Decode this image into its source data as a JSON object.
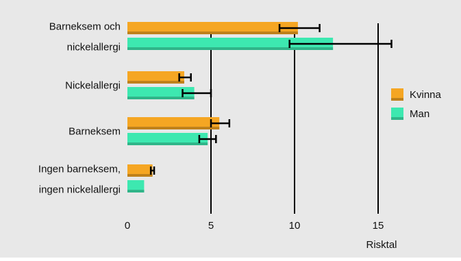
{
  "chart_data": {
    "type": "bar",
    "orientation": "horizontal",
    "categories": [
      {
        "lines": [
          "Barneksem och",
          "nickelallergi"
        ]
      },
      {
        "lines": [
          "Nickelallergi"
        ]
      },
      {
        "lines": [
          "Barneksem"
        ]
      },
      {
        "lines": [
          "Ingen barneksem,",
          "ingen nickelallergi"
        ]
      }
    ],
    "series": [
      {
        "name": "Kvinna",
        "color": "#f5a623",
        "values": [
          10.2,
          3.4,
          5.5,
          1.5
        ],
        "error_low": [
          9.1,
          3.1,
          5.0,
          1.4
        ],
        "error_high": [
          11.5,
          3.8,
          6.1,
          1.6
        ]
      },
      {
        "name": "Man",
        "color": "#3de8b0",
        "values": [
          12.3,
          4.0,
          4.8,
          1.0
        ],
        "error_low": [
          9.7,
          3.3,
          4.3,
          null
        ],
        "error_high": [
          15.8,
          5.0,
          5.3,
          null
        ]
      }
    ],
    "xlim": [
      0,
      16.5
    ],
    "xticks": [
      0,
      5,
      10,
      15
    ],
    "xlabel": "Risktal",
    "gridlines": [
      5,
      10,
      15
    ],
    "legend_position": "right"
  }
}
